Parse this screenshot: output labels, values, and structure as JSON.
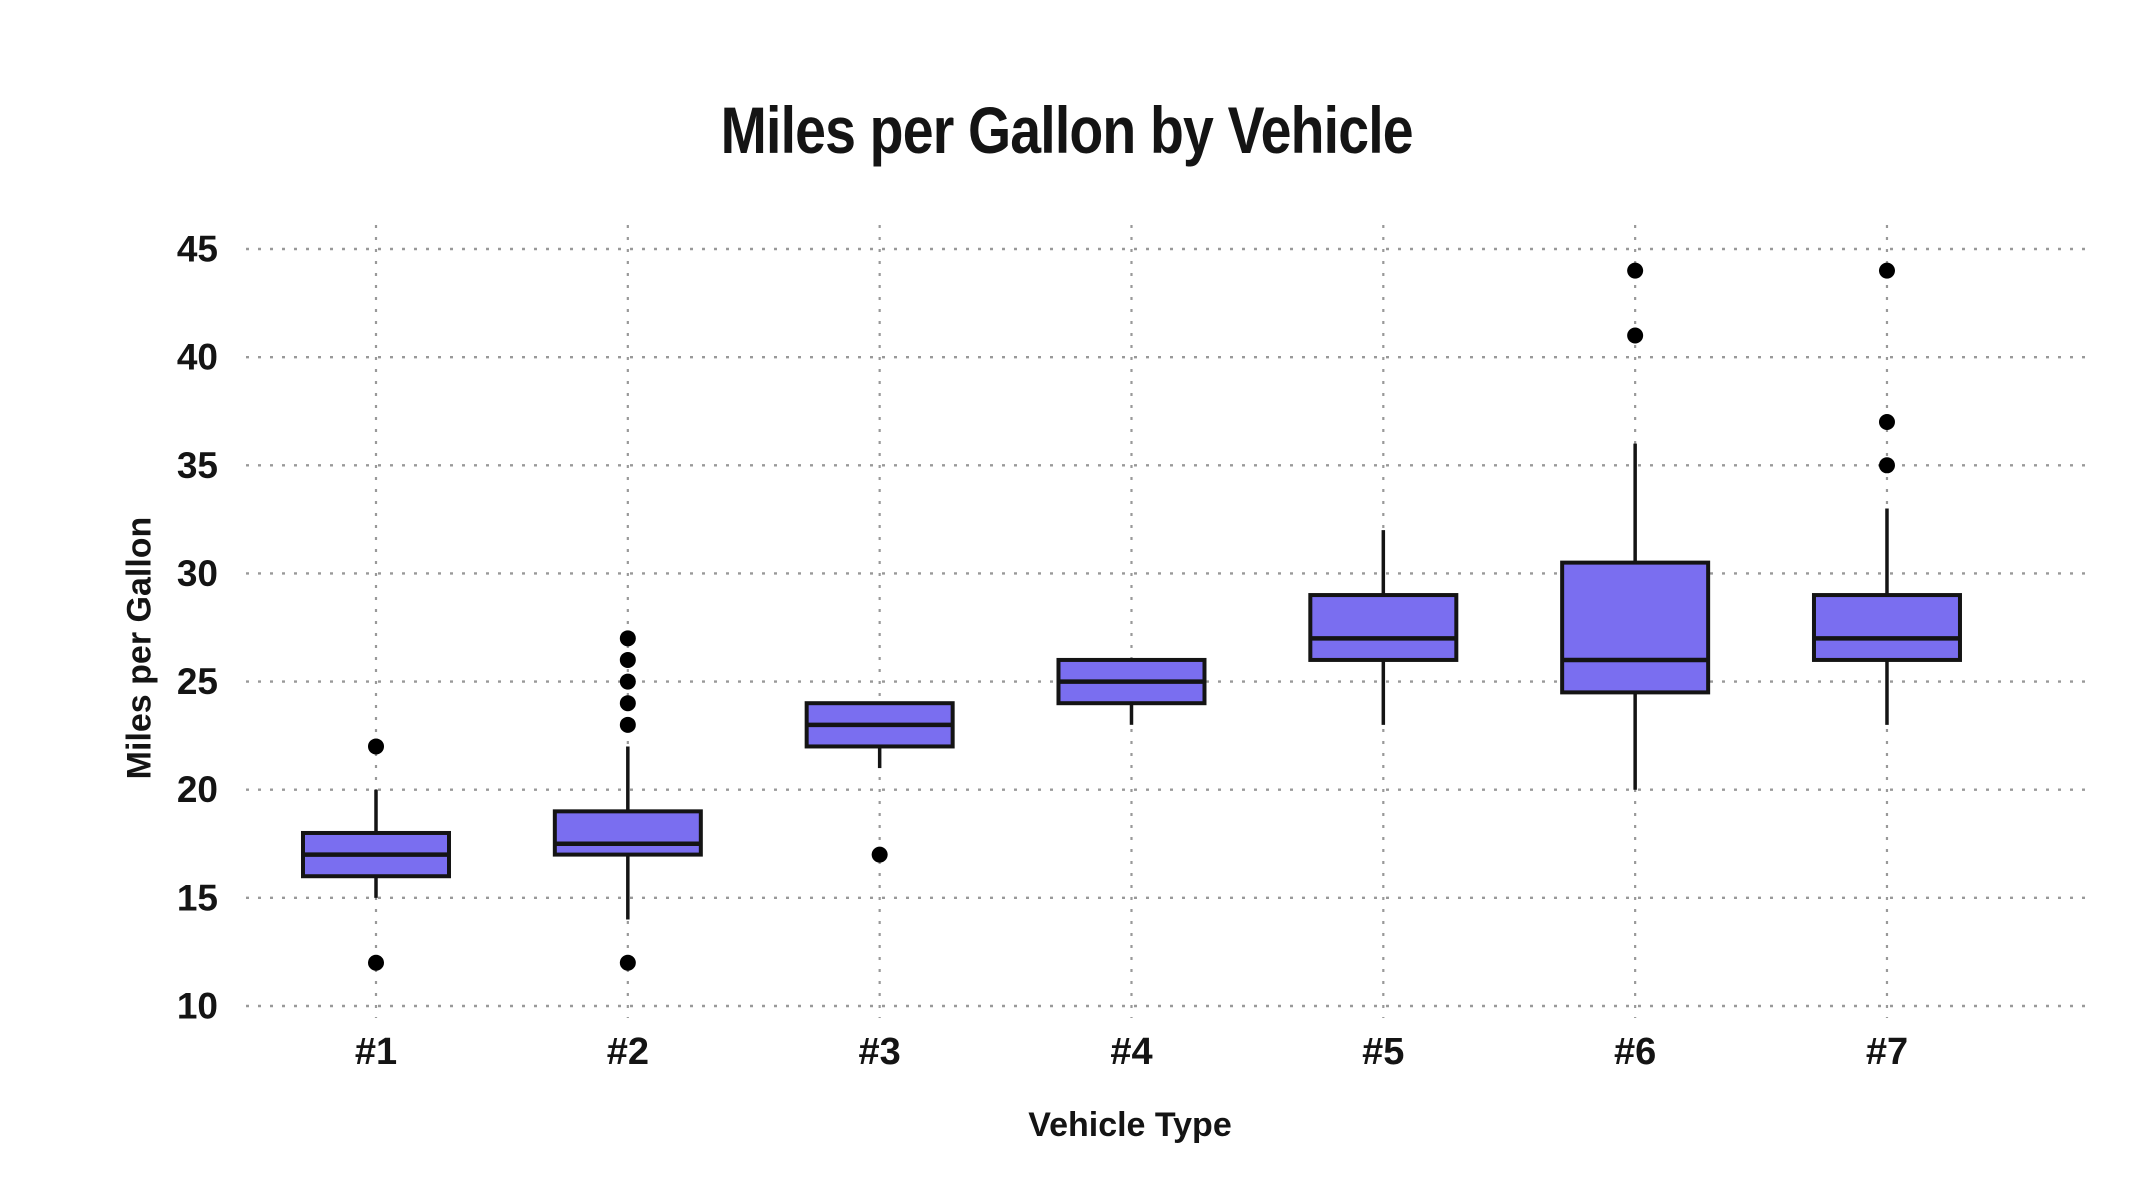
{
  "title": "Miles per Gallon by Vehicle",
  "colors": {
    "background": "#ffffff",
    "box_fill": "#7a6ef0",
    "box_stroke": "#141414",
    "median_stroke": "#141414",
    "whisker_stroke": "#141414",
    "outlier_fill": "#000000",
    "grid": "#999999",
    "text": "#141414"
  },
  "chart_data": {
    "type": "boxplot",
    "title": "Miles per Gallon by Vehicle",
    "xlabel": "Vehicle Type",
    "ylabel": "Miles per Gallon",
    "categories": [
      "#1",
      "#2",
      "#3",
      "#4",
      "#5",
      "#6",
      "#7"
    ],
    "y_ticks": [
      10,
      15,
      20,
      25,
      30,
      35,
      40,
      45
    ],
    "ylim": [
      10,
      45
    ],
    "grid": "dotted-horizontal-and-vertical",
    "legend": "none",
    "boxes": [
      {
        "category": "#1",
        "low": 15,
        "q1": 16,
        "median": 17,
        "q3": 18,
        "high": 20,
        "outliers": [
          22,
          12
        ]
      },
      {
        "category": "#2",
        "low": 14,
        "q1": 17,
        "median": 17.5,
        "q3": 19,
        "high": 22,
        "outliers": [
          27,
          26,
          25,
          24,
          23,
          12
        ]
      },
      {
        "category": "#3",
        "low": 21,
        "q1": 22,
        "median": 23,
        "q3": 24,
        "high": 24,
        "outliers": [
          17
        ]
      },
      {
        "category": "#4",
        "low": 23,
        "q1": 24,
        "median": 25,
        "q3": 26,
        "high": 26,
        "outliers": []
      },
      {
        "category": "#5",
        "low": 23,
        "q1": 26,
        "median": 27,
        "q3": 29,
        "high": 32,
        "outliers": []
      },
      {
        "category": "#6",
        "low": 20,
        "q1": 24.5,
        "median": 26,
        "q3": 30.5,
        "high": 36,
        "outliers": [
          44,
          41
        ]
      },
      {
        "category": "#7",
        "low": 23,
        "q1": 26,
        "median": 27,
        "q3": 29,
        "high": 33,
        "outliers": [
          44,
          37,
          35
        ]
      }
    ]
  }
}
